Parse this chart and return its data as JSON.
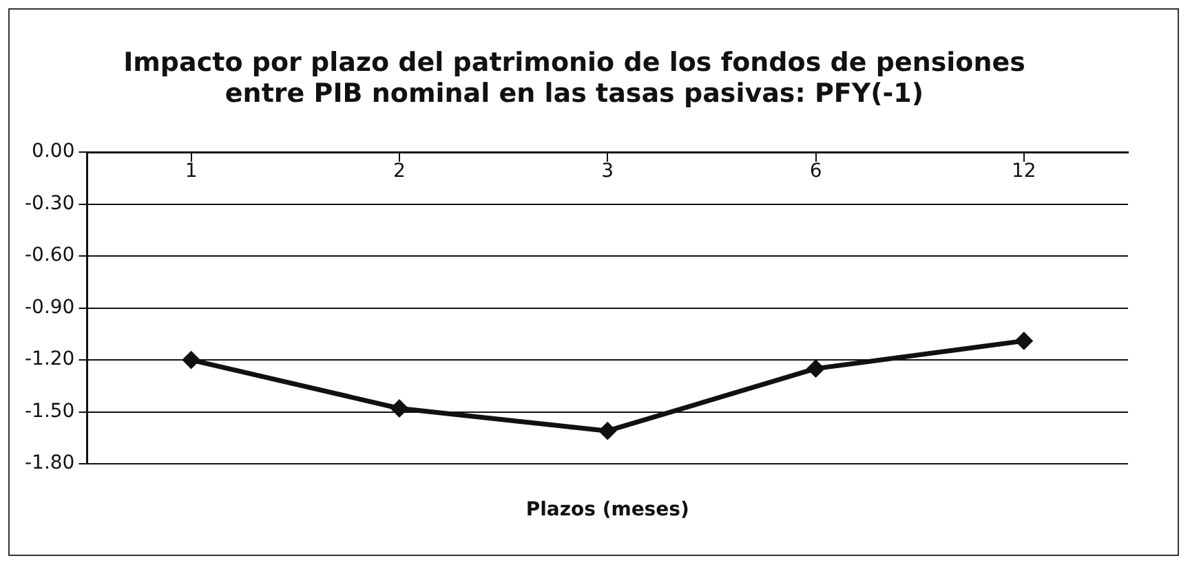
{
  "chart_data": {
    "type": "line",
    "title": "Impacto por plazo del patrimonio de los fondos de pensiones\nentre PIB nominal en las tasas pasivas: PFY(-1)",
    "xlabel": "Plazos (meses)",
    "categories": [
      "1",
      "2",
      "3",
      "6",
      "12"
    ],
    "series": [
      {
        "color": "#111111",
        "values": [
          -1.2,
          -1.48,
          -1.61,
          -1.25,
          -1.09
        ]
      }
    ],
    "ylim": [
      -1.8,
      0
    ],
    "yticks": [
      {
        "value": 0,
        "label": "0.00"
      },
      {
        "value": -0.3,
        "label": "-0.30"
      },
      {
        "value": -0.6,
        "label": "-0.60"
      },
      {
        "value": -0.9,
        "label": "-0.90"
      },
      {
        "value": -1.2,
        "label": "-1.20"
      },
      {
        "value": -1.5,
        "label": "-1.50"
      },
      {
        "value": -1.8,
        "label": "-1.80"
      }
    ],
    "grid": "y",
    "legend": false,
    "marker": "diamond",
    "line_style": "solid"
  }
}
